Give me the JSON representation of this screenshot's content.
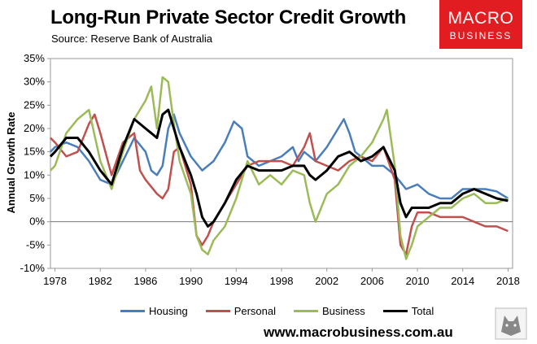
{
  "header": {
    "title": "Long-Run Private Sector Credit Growth",
    "subtitle": "Source: Reserve Bank of Australia"
  },
  "logo": {
    "line1": "MACRO",
    "line2": "BUSINESS",
    "color": "#e11d22"
  },
  "footer": {
    "website": "www.macrobusiness.com.au"
  },
  "chart_data": {
    "type": "line",
    "title": "Long-Run Private Sector Credit Growth",
    "ylabel": "Annual Growth Rate",
    "xlabel": "",
    "xlim": [
      1977.6,
      2018.4
    ],
    "ylim": [
      -10,
      35
    ],
    "grid": false,
    "legend_position": "bottom",
    "x_ticks": [
      "1978",
      "1982",
      "1986",
      "1990",
      "1994",
      "1998",
      "2002",
      "2006",
      "2010",
      "2014",
      "2018"
    ],
    "y_ticks": [
      "35%",
      "30%",
      "25%",
      "20%",
      "15%",
      "10%",
      "5%",
      "0%",
      "-5%",
      "-10%"
    ],
    "series": [
      {
        "name": "Housing",
        "color": "#4a7ebb",
        "points": [
          [
            1977.6,
            15
          ],
          [
            1978,
            16
          ],
          [
            1979,
            17
          ],
          [
            1980,
            16
          ],
          [
            1981,
            13
          ],
          [
            1982,
            9
          ],
          [
            1983,
            8
          ],
          [
            1984,
            13
          ],
          [
            1985,
            18
          ],
          [
            1986,
            15
          ],
          [
            1986.5,
            11
          ],
          [
            1987,
            10
          ],
          [
            1987.5,
            12
          ],
          [
            1988,
            20
          ],
          [
            1988.5,
            23
          ],
          [
            1989,
            19
          ],
          [
            1990,
            14
          ],
          [
            1991,
            11
          ],
          [
            1992,
            13
          ],
          [
            1993,
            17
          ],
          [
            1993.8,
            21.5
          ],
          [
            1994.5,
            20
          ],
          [
            1995,
            14
          ],
          [
            1996,
            12
          ],
          [
            1997,
            13
          ],
          [
            1998,
            14
          ],
          [
            1999,
            16
          ],
          [
            1999.5,
            13
          ],
          [
            2000,
            15
          ],
          [
            2001,
            13
          ],
          [
            2002,
            16
          ],
          [
            2003,
            20
          ],
          [
            2003.5,
            22
          ],
          [
            2004,
            19
          ],
          [
            2004.5,
            15
          ],
          [
            2005,
            14
          ],
          [
            2006,
            12
          ],
          [
            2007,
            12
          ],
          [
            2008,
            10
          ],
          [
            2009,
            7
          ],
          [
            2010,
            8
          ],
          [
            2011,
            6
          ],
          [
            2012,
            5
          ],
          [
            2013,
            5
          ],
          [
            2014,
            7
          ],
          [
            2015,
            7
          ],
          [
            2016,
            7
          ],
          [
            2017,
            6.5
          ],
          [
            2018,
            5
          ]
        ]
      },
      {
        "name": "Personal",
        "color": "#c0504d",
        "points": [
          [
            1977.6,
            18
          ],
          [
            1978,
            17
          ],
          [
            1979,
            14
          ],
          [
            1980,
            15
          ],
          [
            1981,
            21
          ],
          [
            1981.5,
            23
          ],
          [
            1982,
            19
          ],
          [
            1983,
            10
          ],
          [
            1984,
            17
          ],
          [
            1985,
            19
          ],
          [
            1985.5,
            11
          ],
          [
            1986,
            9
          ],
          [
            1987,
            6
          ],
          [
            1987.5,
            5
          ],
          [
            1988,
            7
          ],
          [
            1988.5,
            15
          ],
          [
            1989,
            16
          ],
          [
            1990,
            8
          ],
          [
            1990.5,
            -3
          ],
          [
            1991,
            -5
          ],
          [
            1991.5,
            -3
          ],
          [
            1992,
            0
          ],
          [
            1993,
            4
          ],
          [
            1994,
            8
          ],
          [
            1995,
            12
          ],
          [
            1996,
            13
          ],
          [
            1997,
            13
          ],
          [
            1998,
            13
          ],
          [
            1999,
            12
          ],
          [
            2000,
            16
          ],
          [
            2000.5,
            19
          ],
          [
            2001,
            13
          ],
          [
            2002,
            12
          ],
          [
            2003,
            11
          ],
          [
            2004,
            13
          ],
          [
            2005,
            14
          ],
          [
            2006,
            13
          ],
          [
            2007,
            16
          ],
          [
            2008,
            9
          ],
          [
            2008.5,
            -5
          ],
          [
            2009,
            -7
          ],
          [
            2009.5,
            -1
          ],
          [
            2010,
            2
          ],
          [
            2011,
            2
          ],
          [
            2012,
            1
          ],
          [
            2013,
            1
          ],
          [
            2014,
            1
          ],
          [
            2015,
            0
          ],
          [
            2016,
            -1
          ],
          [
            2017,
            -1
          ],
          [
            2018,
            -2
          ]
        ]
      },
      {
        "name": "Business",
        "color": "#9bbb59",
        "points": [
          [
            1977.6,
            11
          ],
          [
            1978,
            12
          ],
          [
            1979,
            19
          ],
          [
            1980,
            22
          ],
          [
            1981,
            24
          ],
          [
            1982,
            13
          ],
          [
            1983,
            7
          ],
          [
            1984,
            15
          ],
          [
            1985,
            22
          ],
          [
            1986,
            26
          ],
          [
            1986.5,
            29
          ],
          [
            1987,
            20
          ],
          [
            1987.5,
            31
          ],
          [
            1988,
            30
          ],
          [
            1988.5,
            21
          ],
          [
            1989,
            13
          ],
          [
            1990,
            6
          ],
          [
            1990.5,
            -3
          ],
          [
            1991,
            -6
          ],
          [
            1991.5,
            -7
          ],
          [
            1992,
            -4
          ],
          [
            1993,
            -1
          ],
          [
            1994,
            5
          ],
          [
            1995,
            13
          ],
          [
            1996,
            8
          ],
          [
            1997,
            10
          ],
          [
            1998,
            8
          ],
          [
            1999,
            11
          ],
          [
            2000,
            10
          ],
          [
            2000.5,
            4
          ],
          [
            2001,
            0
          ],
          [
            2002,
            6
          ],
          [
            2003,
            8
          ],
          [
            2004,
            12
          ],
          [
            2005,
            14
          ],
          [
            2006,
            17
          ],
          [
            2007,
            22
          ],
          [
            2007.3,
            24
          ],
          [
            2008,
            12
          ],
          [
            2008.5,
            -3
          ],
          [
            2009,
            -8
          ],
          [
            2009.5,
            -5
          ],
          [
            2010,
            -1
          ],
          [
            2011,
            1
          ],
          [
            2012,
            3
          ],
          [
            2013,
            3
          ],
          [
            2014,
            5
          ],
          [
            2015,
            6
          ],
          [
            2016,
            4
          ],
          [
            2017,
            4
          ],
          [
            2018,
            5
          ]
        ]
      },
      {
        "name": "Total",
        "color": "#000000",
        "points": [
          [
            1977.6,
            14
          ],
          [
            1978,
            15
          ],
          [
            1979,
            18
          ],
          [
            1980,
            18
          ],
          [
            1981,
            15
          ],
          [
            1982,
            11
          ],
          [
            1983,
            8
          ],
          [
            1984,
            16
          ],
          [
            1985,
            22
          ],
          [
            1986,
            20
          ],
          [
            1986.5,
            19
          ],
          [
            1987,
            18
          ],
          [
            1987.5,
            23
          ],
          [
            1988,
            24
          ],
          [
            1988.5,
            20
          ],
          [
            1989,
            16
          ],
          [
            1990,
            10
          ],
          [
            1990.5,
            6
          ],
          [
            1991,
            1
          ],
          [
            1991.5,
            -1
          ],
          [
            1992,
            0
          ],
          [
            1993,
            4
          ],
          [
            1994,
            9
          ],
          [
            1995,
            12
          ],
          [
            1996,
            11
          ],
          [
            1997,
            11
          ],
          [
            1998,
            11
          ],
          [
            1999,
            12
          ],
          [
            2000,
            12
          ],
          [
            2000.5,
            10
          ],
          [
            2001,
            9
          ],
          [
            2002,
            11
          ],
          [
            2003,
            14
          ],
          [
            2004,
            15
          ],
          [
            2005,
            13
          ],
          [
            2006,
            14
          ],
          [
            2007,
            16
          ],
          [
            2008,
            11
          ],
          [
            2008.5,
            4
          ],
          [
            2009,
            1
          ],
          [
            2009.5,
            3
          ],
          [
            2010,
            3
          ],
          [
            2011,
            3
          ],
          [
            2012,
            4
          ],
          [
            2013,
            4
          ],
          [
            2014,
            6
          ],
          [
            2015,
            7
          ],
          [
            2016,
            6
          ],
          [
            2017,
            5
          ],
          [
            2018,
            4.5
          ]
        ]
      }
    ]
  }
}
